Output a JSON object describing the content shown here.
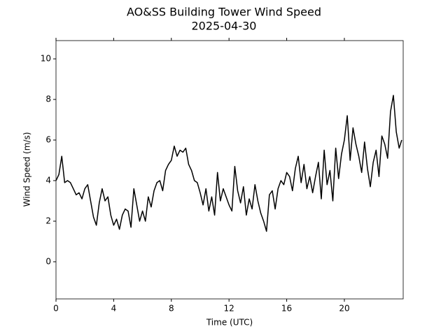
{
  "chart_data": {
    "type": "line",
    "title": "AO&SS Building Tower Wind Speed",
    "subtitle": "2025-04-30",
    "x_label": "Time (UTC)",
    "y_label": "Wind Speed (m/s)",
    "color": "#000000",
    "xlim": [
      0,
      24.08
    ],
    "ylim": [
      -1.83,
      10.9
    ],
    "xticks": [
      0,
      4,
      8,
      12,
      16,
      20
    ],
    "yticks": [
      0,
      2,
      4,
      6,
      8,
      10
    ],
    "x": [
      0,
      0.2,
      0.4,
      0.6,
      0.8,
      1.0,
      1.2,
      1.4,
      1.6,
      1.8,
      2.0,
      2.2,
      2.4,
      2.6,
      2.8,
      3.0,
      3.2,
      3.4,
      3.6,
      3.8,
      4.0,
      4.2,
      4.4,
      4.6,
      4.8,
      5.0,
      5.2,
      5.4,
      5.6,
      5.8,
      6.0,
      6.2,
      6.4,
      6.6,
      6.8,
      7.0,
      7.2,
      7.4,
      7.6,
      7.8,
      8.0,
      8.2,
      8.4,
      8.6,
      8.8,
      9.0,
      9.2,
      9.4,
      9.6,
      9.8,
      10.0,
      10.2,
      10.4,
      10.6,
      10.8,
      11.0,
      11.2,
      11.4,
      11.6,
      11.8,
      12.0,
      12.2,
      12.4,
      12.6,
      12.8,
      13.0,
      13.2,
      13.4,
      13.6,
      13.8,
      14.0,
      14.2,
      14.4,
      14.6,
      14.8,
      15.0,
      15.2,
      15.4,
      15.6,
      15.8,
      16.0,
      16.2,
      16.4,
      16.6,
      16.8,
      17.0,
      17.2,
      17.4,
      17.6,
      17.8,
      18.0,
      18.2,
      18.4,
      18.6,
      18.8,
      19.0,
      19.2,
      19.4,
      19.6,
      19.8,
      20.0,
      20.2,
      20.4,
      20.6,
      20.8,
      21.0,
      21.2,
      21.4,
      21.6,
      21.8,
      22.0,
      22.2,
      22.4,
      22.6,
      22.8,
      23.0,
      23.2,
      23.4,
      23.6,
      23.8,
      23.98
    ],
    "values": [
      4.0,
      4.3,
      5.2,
      3.9,
      4.0,
      3.9,
      3.6,
      3.3,
      3.4,
      3.1,
      3.6,
      3.8,
      3.0,
      2.2,
      1.8,
      2.9,
      3.6,
      3.0,
      3.2,
      2.3,
      1.8,
      2.1,
      1.6,
      2.3,
      2.6,
      2.5,
      1.7,
      3.6,
      2.8,
      2.0,
      2.5,
      2.0,
      3.2,
      2.7,
      3.5,
      3.9,
      4.0,
      3.5,
      4.5,
      4.8,
      5.0,
      5.7,
      5.2,
      5.5,
      5.4,
      5.6,
      4.8,
      4.5,
      4.0,
      3.9,
      3.4,
      2.8,
      3.6,
      2.5,
      3.2,
      2.3,
      4.4,
      3.0,
      3.6,
      3.2,
      2.8,
      2.5,
      4.7,
      3.5,
      2.9,
      3.7,
      2.3,
      3.1,
      2.6,
      3.8,
      3.0,
      2.4,
      2.0,
      1.5,
      3.3,
      3.5,
      2.6,
      3.6,
      4.0,
      3.8,
      4.4,
      4.2,
      3.5,
      4.6,
      5.2,
      3.9,
      4.8,
      3.6,
      4.2,
      3.4,
      4.2,
      4.9,
      3.1,
      5.5,
      3.8,
      4.5,
      3.0,
      5.6,
      4.1,
      5.3,
      6.0,
      7.2,
      5.0,
      6.6,
      5.8,
      5.2,
      4.4,
      5.9,
      4.6,
      3.7,
      4.9,
      5.5,
      4.2,
      6.2,
      5.8,
      5.1,
      7.4,
      8.2,
      6.4,
      5.6,
      6.0
    ]
  }
}
